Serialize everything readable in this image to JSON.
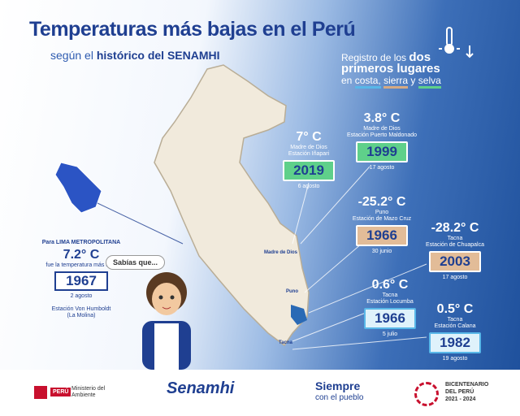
{
  "header": {
    "title": "Temperaturas más bajas en el Perú",
    "subtitle_prefix": "según el",
    "subtitle_bold": "histórico del SENAMHI"
  },
  "legend": {
    "intro": "Registro de los",
    "highlight": "dos primeros lugares",
    "prefix": "en",
    "costa": "costa,",
    "sierra": "sierra",
    "and": "y",
    "selva": "selva"
  },
  "cards": [
    {
      "temp": "7° C",
      "place": "Madre de Dios",
      "station": "Estación Iñapari",
      "year": "2019",
      "date": "6 agosto"
    },
    {
      "temp": "3.8° C",
      "place": "Madre de Dios",
      "station": "Estación Puerto Maldonado",
      "year": "1999",
      "date": "17 agosto"
    },
    {
      "temp": "-25.2° C",
      "place": "Puno",
      "station": "Estación de Mazo Cruz",
      "year": "1966",
      "date": "30 junio"
    },
    {
      "temp": "-28.2° C",
      "place": "Tacna",
      "station": "Estación de Chuapalca",
      "year": "2003",
      "date": "17 agosto"
    },
    {
      "temp": "0.6° C",
      "place": "Tacna",
      "station": "Estación Locumba",
      "year": "1966",
      "date": "5 julio"
    },
    {
      "temp": "0.5° C",
      "place": "Tacna",
      "station": "Estación Calana",
      "year": "1982",
      "date": "19 agosto"
    }
  ],
  "lima": {
    "intro": "Para LIMA METROPOLITANA",
    "temp": "7.2° C",
    "text": "fue la temperatura más baja",
    "year": "1967",
    "date": "2 agosto",
    "station": "Estación Von Humboldt",
    "district": "(La Molina)"
  },
  "bubble": "Sabías que...",
  "map_labels": [
    "Madre de Dios",
    "Puno",
    "Tacna"
  ],
  "footer": {
    "peru": "PERÚ",
    "ministry": "Ministerio del Ambiente",
    "senamhi": "Senamhi",
    "siempre": "Siempre",
    "pueblo": "con el pueblo",
    "bicentenario": "BICENTENARIO",
    "del_peru": "DEL PERÚ",
    "years": "2021 - 2024"
  }
}
